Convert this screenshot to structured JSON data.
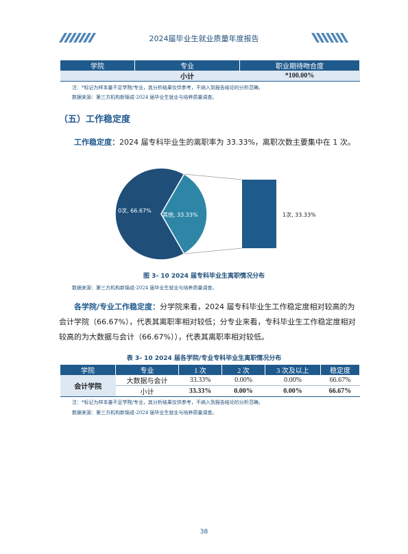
{
  "header": {
    "title": "2024届毕业生就业质量年度报告"
  },
  "table1": {
    "headers": [
      "学院",
      "专业",
      "职业期待吻合度"
    ],
    "row": {
      "college": "",
      "major": "小计",
      "value": "*100.00%"
    }
  },
  "notes": {
    "note1": "注：*标记为样本量不足学院/专业，其分析结果仅供参考，不纳入到报告结论的分析范畴。",
    "source1": "数据来源：第三方机构新锦成-2024 届毕业生就业与培养质量调查。",
    "source2": "数据来源：第三方机构新锦成-2024 届毕业生就业与培养质量调查。",
    "note2": "注：*标记为样本量不足学院/专业，其分析结果仅供参考，不纳入到报告结论的分析范畴。",
    "source3": "数据来源：第三方机构新锦成-2024 届毕业生就业与培养质量调查。"
  },
  "section": {
    "title": "（五）工作稳定度"
  },
  "para1": {
    "keyword": "工作稳定度：",
    "text": "2024 届专科毕业生的离职率为 33.33%，离职次数主要集中在 1 次。"
  },
  "chart_data": {
    "type": "pie",
    "slices": [
      {
        "label": "0次, 66.67%",
        "name": "0次",
        "value": 66.67,
        "color": "#1f4e79"
      },
      {
        "label": "其他, 33.33%",
        "name": "其他",
        "value": 33.33,
        "color": "#2e86a6"
      }
    ],
    "breakdown": {
      "label": "1次, 33.33%",
      "name": "1次",
      "value": 33.33,
      "color": "#1f5a8d"
    },
    "caption": "图 3- 10  2024 届专科毕业生离职情况分布"
  },
  "para2": {
    "keyword": "各学院/专业工作稳定度：",
    "text": "分学院来看，2024 届专科毕业生工作稳定度相对较高的为会计学院（66.67%），代表其离职率相对较低；分专业来看，专科毕业生工作稳定度相对较高的为大数据与会计（66.67%）），代表其离职率相对较低。"
  },
  "table2": {
    "caption": "表 3- 10  2024 届各学院/专业专科毕业生离职情况分布",
    "headers": [
      "学院",
      "专业",
      "1 次",
      "2 次",
      "3 次及以上",
      "稳定度"
    ],
    "college": "会计学院",
    "rows": [
      {
        "major": "大数据与会计",
        "c1": "33.33%",
        "c2": "0.00%",
        "c3": "0.00%",
        "stability": "66.67%"
      },
      {
        "major": "小计",
        "c1": "33.33%",
        "c2": "0.00%",
        "c3": "0.00%",
        "stability": "66.67%"
      }
    ]
  },
  "page": {
    "number": "38"
  }
}
